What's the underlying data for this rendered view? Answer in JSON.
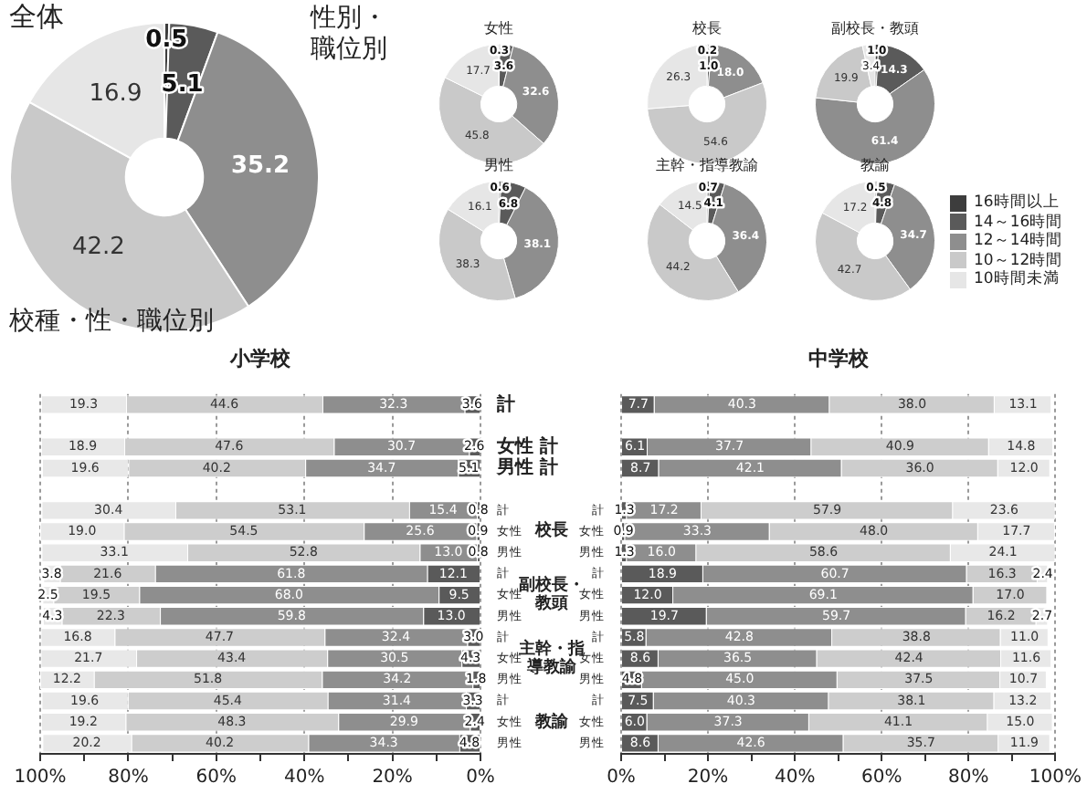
{
  "chart_data": [
    {
      "type": "donut",
      "title": "全体",
      "categories": [
        null,
        null,
        null,
        null,
        null
      ],
      "values": [
        0.5,
        5.1,
        35.2,
        42.2,
        16.9
      ],
      "value_labels": [
        "0.5",
        "5.1",
        "35.2",
        "42.2",
        "16.9"
      ],
      "colors": [
        "#3d3d3d",
        "#5a5a5a",
        "#8e8e8e",
        "#c9c9c9",
        "#e6e6e6"
      ]
    },
    {
      "type": "other",
      "title": "性別・職位別"
    },
    {
      "type": "donut",
      "title": "女性",
      "categories": [
        null,
        null,
        null,
        null,
        null
      ],
      "values": [
        0.3,
        3.6,
        32.6,
        45.8,
        17.7
      ],
      "value_labels": [
        "0.3",
        "3.6",
        "32.6",
        "45.8",
        "17.7"
      ],
      "colors": [
        "#3d3d3d",
        "#5a5a5a",
        "#8e8e8e",
        "#c9c9c9",
        "#e6e6e6"
      ]
    },
    {
      "type": "donut",
      "title": "校長",
      "categories": [
        null,
        null,
        null,
        null,
        null
      ],
      "values": [
        0.2,
        1.0,
        18.0,
        54.6,
        26.3
      ],
      "value_labels": [
        "0.2",
        "1.0",
        "18.0",
        "54.6",
        "26.3"
      ],
      "colors": [
        "#3d3d3d",
        "#5a5a5a",
        "#8e8e8e",
        "#c9c9c9",
        "#e6e6e6"
      ]
    },
    {
      "type": "donut",
      "title": "副校長・教頭",
      "categories": [
        null,
        null,
        null,
        null,
        null
      ],
      "values": [
        1.0,
        14.3,
        61.4,
        19.9,
        3.4
      ],
      "value_labels": [
        "1.0",
        "14.3",
        "61.4",
        "19.9",
        "3.4"
      ],
      "colors": [
        "#3d3d3d",
        "#5a5a5a",
        "#8e8e8e",
        "#c9c9c9",
        "#e6e6e6"
      ]
    },
    {
      "type": "donut",
      "title": "男性",
      "categories": [
        null,
        null,
        null,
        null,
        null
      ],
      "values": [
        0.6,
        6.8,
        38.1,
        38.3,
        16.1
      ],
      "value_labels": [
        "0.6",
        "6.8",
        "38.1",
        "38.3",
        "16.1"
      ],
      "colors": [
        "#3d3d3d",
        "#5a5a5a",
        "#8e8e8e",
        "#c9c9c9",
        "#e6e6e6"
      ]
    },
    {
      "type": "donut",
      "title": "主幹・指導教諭",
      "categories": [
        null,
        null,
        null,
        null,
        null
      ],
      "values": [
        0.7,
        4.1,
        36.4,
        44.2,
        14.5
      ],
      "value_labels": [
        "0.7",
        "4.1",
        "36.4",
        "44.2",
        "14.5"
      ],
      "colors": [
        "#3d3d3d",
        "#5a5a5a",
        "#8e8e8e",
        "#c9c9c9",
        "#e6e6e6"
      ]
    },
    {
      "type": "donut",
      "title": "教諭",
      "categories": [
        "16時間以上",
        "14～16時間",
        "12～14時間",
        "10～12時間",
        "10時間未満"
      ],
      "values": [
        0.5,
        4.8,
        34.7,
        42.7,
        17.2
      ],
      "value_labels": [
        "0.5",
        "4.8",
        "34.7",
        "42.7",
        "17.2"
      ],
      "colors": [
        "#3d3d3d",
        "#5a5a5a",
        "#8e8e8e",
        "#c9c9c9",
        "#e6e6e6"
      ],
      "legend": "right"
    },
    {
      "type": "other",
      "title": "校種・性・職位別"
    },
    {
      "type": "bar",
      "orientation": "horizontal",
      "stacked": true,
      "title": "小学校",
      "categories": [
        "計",
        null,
        "女性 計",
        "男性 計",
        null,
        "計",
        "女性",
        "男性",
        "計",
        "女性",
        "男性",
        "計",
        "女性",
        "男性",
        "計",
        "女性",
        "男性"
      ],
      "series": [
        {
          "color": "#5a5a5a",
          "values": [
            3.6,
            null,
            2.6,
            5.1,
            null,
            0.8,
            0.9,
            0.8,
            12.1,
            9.5,
            13.0,
            3.0,
            4.3,
            1.8,
            3.3,
            2.4,
            4.8
          ],
          "value_labels": [
            "3.6",
            null,
            "2.6",
            "5.1",
            null,
            "0.8",
            "0.9",
            "0.8",
            "12.1",
            "9.5",
            "13.0",
            "3.0",
            "4.3",
            "1.8",
            "3.3",
            "2.4",
            "4.8"
          ]
        },
        {
          "color": "#8e8e8e",
          "values": [
            32.3,
            null,
            30.7,
            34.7,
            null,
            15.4,
            25.6,
            13.0,
            61.8,
            68.0,
            59.8,
            32.4,
            30.5,
            34.2,
            31.4,
            29.9,
            34.3
          ],
          "value_labels": [
            "32.3",
            null,
            "30.7",
            "34.7",
            null,
            "15.4",
            "25.6",
            "13.0",
            "61.8",
            "68.0",
            "59.8",
            "32.4",
            "30.5",
            "34.2",
            "31.4",
            "29.9",
            "34.3"
          ]
        },
        {
          "color": "#cdcdcd",
          "values": [
            44.6,
            null,
            47.6,
            40.2,
            null,
            53.1,
            54.5,
            52.8,
            21.6,
            19.5,
            22.3,
            47.7,
            43.4,
            51.8,
            45.4,
            48.3,
            40.2
          ],
          "value_labels": [
            "44.6",
            null,
            "47.6",
            "40.2",
            null,
            "53.1",
            "54.5",
            "52.8",
            "21.6",
            "19.5",
            "22.3",
            "47.7",
            "43.4",
            "51.8",
            "45.4",
            "48.3",
            "40.2"
          ]
        },
        {
          "color": "#e8e8e8",
          "values": [
            19.3,
            null,
            18.9,
            19.6,
            null,
            30.4,
            19.0,
            33.1,
            3.8,
            2.5,
            4.3,
            16.8,
            21.7,
            12.2,
            19.6,
            19.2,
            20.2
          ],
          "value_labels": [
            "19.3",
            null,
            "18.9",
            "19.6",
            null,
            "30.4",
            "19.0",
            "33.1",
            "3.8",
            "2.5",
            "4.3",
            "16.8",
            "21.7",
            "12.2",
            "19.6",
            "19.2",
            "20.2"
          ]
        }
      ],
      "xlim": [
        100,
        0
      ],
      "xticks": [
        {
          "value": 0,
          "label": "0%"
        },
        {
          "value": 10,
          "label": null
        },
        {
          "value": 20,
          "label": "20%"
        },
        {
          "value": 30,
          "label": null
        },
        {
          "value": 40,
          "label": "40%"
        },
        {
          "value": 50,
          "label": null
        },
        {
          "value": 60,
          "label": "60%"
        },
        {
          "value": 70,
          "label": null
        },
        {
          "value": 80,
          "label": "80%"
        },
        {
          "value": 90,
          "label": null
        },
        {
          "value": 100,
          "label": "100%"
        }
      ],
      "grid": "x",
      "annotations": [
        "校長",
        "副校長・教頭",
        "主幹・指導教諭",
        "教諭"
      ]
    },
    {
      "type": "bar",
      "orientation": "horizontal",
      "stacked": true,
      "title": "中学校",
      "categories": [
        null,
        null,
        null,
        null,
        null,
        "計",
        "女性",
        "男性",
        "計",
        "女性",
        "男性",
        "計",
        "女性",
        "男性",
        "計",
        "女性",
        "男性"
      ],
      "series": [
        {
          "color": "#5a5a5a",
          "values": [
            7.7,
            null,
            6.1,
            8.7,
            null,
            1.3,
            0.9,
            1.3,
            18.9,
            12.0,
            19.7,
            5.8,
            8.6,
            4.8,
            7.5,
            6.0,
            8.6
          ],
          "value_labels": [
            "7.7",
            null,
            "6.1",
            "8.7",
            null,
            "1.3",
            "0.9",
            "1.3",
            "18.9",
            "12.0",
            "19.7",
            "5.8",
            "8.6",
            "4.8",
            "7.5",
            "6.0",
            "8.6"
          ]
        },
        {
          "color": "#8e8e8e",
          "values": [
            40.3,
            null,
            37.7,
            42.1,
            null,
            17.2,
            33.3,
            16.0,
            60.7,
            69.1,
            59.7,
            42.8,
            36.5,
            45.0,
            40.3,
            37.3,
            42.6
          ],
          "value_labels": [
            "40.3",
            null,
            "37.7",
            "42.1",
            null,
            "17.2",
            "33.3",
            "16.0",
            "60.7",
            "69.1",
            "59.7",
            "42.8",
            "36.5",
            "45.0",
            "40.3",
            "37.3",
            "42.6"
          ]
        },
        {
          "color": "#cdcdcd",
          "values": [
            38.0,
            null,
            40.9,
            36.0,
            null,
            57.9,
            48.0,
            58.6,
            16.3,
            17.0,
            16.2,
            38.8,
            42.4,
            37.5,
            38.1,
            41.1,
            35.7
          ],
          "value_labels": [
            "38.0",
            null,
            "40.9",
            "36.0",
            null,
            "57.9",
            "48.0",
            "58.6",
            "16.3",
            "17.0",
            "16.2",
            "38.8",
            "42.4",
            "37.5",
            "38.1",
            "41.1",
            "35.7"
          ]
        },
        {
          "color": "#e8e8e8",
          "values": [
            13.1,
            null,
            14.8,
            12.0,
            null,
            23.6,
            17.7,
            24.1,
            2.4,
            null,
            2.7,
            11.0,
            11.6,
            10.7,
            13.2,
            15.0,
            11.9
          ],
          "value_labels": [
            "13.1",
            null,
            "14.8",
            "12.0",
            null,
            "23.6",
            "17.7",
            "24.1",
            "2.4",
            null,
            "2.7",
            "11.0",
            "11.6",
            "10.7",
            "13.2",
            "15.0",
            "11.9"
          ]
        }
      ],
      "xlim": [
        0,
        100
      ],
      "xticks": [
        {
          "value": 0,
          "label": "0%"
        },
        {
          "value": 10,
          "label": null
        },
        {
          "value": 20,
          "label": "20%"
        },
        {
          "value": 30,
          "label": null
        },
        {
          "value": 40,
          "label": "40%"
        },
        {
          "value": 50,
          "label": null
        },
        {
          "value": 60,
          "label": "60%"
        },
        {
          "value": 70,
          "label": null
        },
        {
          "value": 80,
          "label": "80%"
        },
        {
          "value": 90,
          "label": null
        },
        {
          "value": 100,
          "label": "100%"
        }
      ],
      "grid": "x"
    }
  ]
}
